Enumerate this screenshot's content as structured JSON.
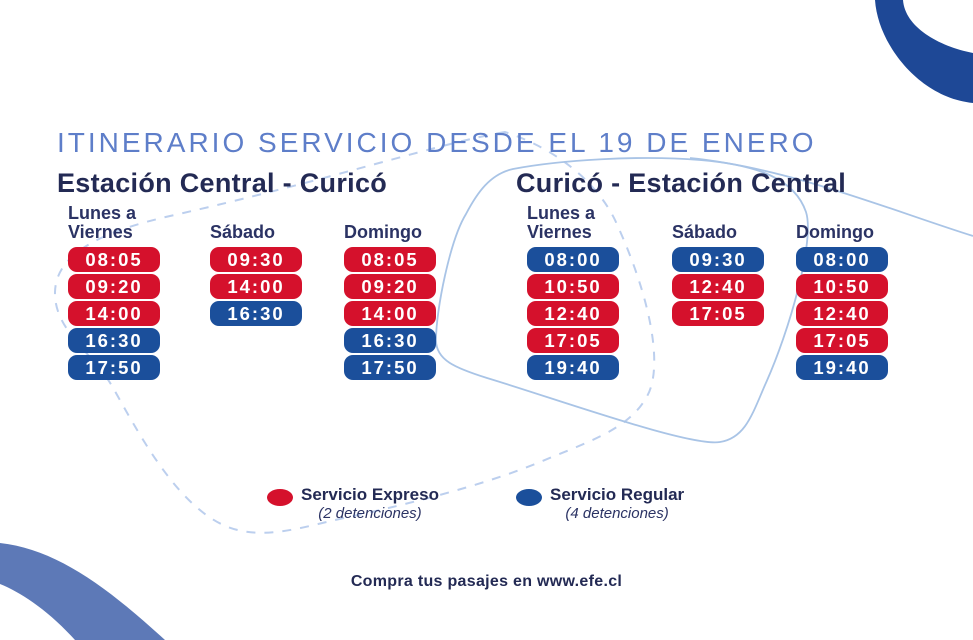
{
  "title": "ITINERARIO SERVICIO DESDE EL 19 DE ENERO",
  "sections": [
    {
      "title": "Estación Central - Curicó",
      "columns": [
        {
          "label": "Lunes a\nViernes",
          "times": [
            {
              "time": "08:05",
              "service": "expreso"
            },
            {
              "time": "09:20",
              "service": "expreso"
            },
            {
              "time": "14:00",
              "service": "expreso"
            },
            {
              "time": "16:30",
              "service": "regular"
            },
            {
              "time": "17:50",
              "service": "regular"
            }
          ]
        },
        {
          "label": "Sábado",
          "times": [
            {
              "time": "09:30",
              "service": "expreso"
            },
            {
              "time": "14:00",
              "service": "expreso"
            },
            {
              "time": "16:30",
              "service": "regular"
            }
          ]
        },
        {
          "label": "Domingo",
          "times": [
            {
              "time": "08:05",
              "service": "expreso"
            },
            {
              "time": "09:20",
              "service": "expreso"
            },
            {
              "time": "14:00",
              "service": "expreso"
            },
            {
              "time": "16:30",
              "service": "regular"
            },
            {
              "time": "17:50",
              "service": "regular"
            }
          ]
        }
      ]
    },
    {
      "title": "Curicó - Estación Central",
      "columns": [
        {
          "label": "Lunes a\nViernes",
          "times": [
            {
              "time": "08:00",
              "service": "regular"
            },
            {
              "time": "10:50",
              "service": "expreso"
            },
            {
              "time": "12:40",
              "service": "expreso"
            },
            {
              "time": "17:05",
              "service": "expreso"
            },
            {
              "time": "19:40",
              "service": "regular"
            }
          ]
        },
        {
          "label": "Sábado",
          "times": [
            {
              "time": "09:30",
              "service": "regular"
            },
            {
              "time": "12:40",
              "service": "expreso"
            },
            {
              "time": "17:05",
              "service": "expreso"
            }
          ]
        },
        {
          "label": "Domingo",
          "times": [
            {
              "time": "08:00",
              "service": "regular"
            },
            {
              "time": "10:50",
              "service": "expreso"
            },
            {
              "time": "12:40",
              "service": "expreso"
            },
            {
              "time": "17:05",
              "service": "expreso"
            },
            {
              "time": "19:40",
              "service": "regular"
            }
          ]
        }
      ]
    }
  ],
  "legend": {
    "expreso": {
      "label": "Servicio Expreso",
      "note": "(2 detenciones)",
      "color": "#d5112c"
    },
    "regular": {
      "label": "Servicio Regular",
      "note": "(4 detenciones)",
      "color": "#1b4f9b"
    }
  },
  "footer": "Compra tus pasajes en www.efe.cl",
  "colors": {
    "expreso_red": "#d5112c",
    "regular_blue": "#1b4f9b",
    "title_blue": "#5e7ec9",
    "heading_navy": "#232a54",
    "day_header_navy": "#2b3364",
    "corner_arc_blue": "#1e4896",
    "corner_band_blue": "#5d79b7",
    "route_line_solid": "#a9c4e6",
    "route_line_dashed": "#bccfee"
  }
}
